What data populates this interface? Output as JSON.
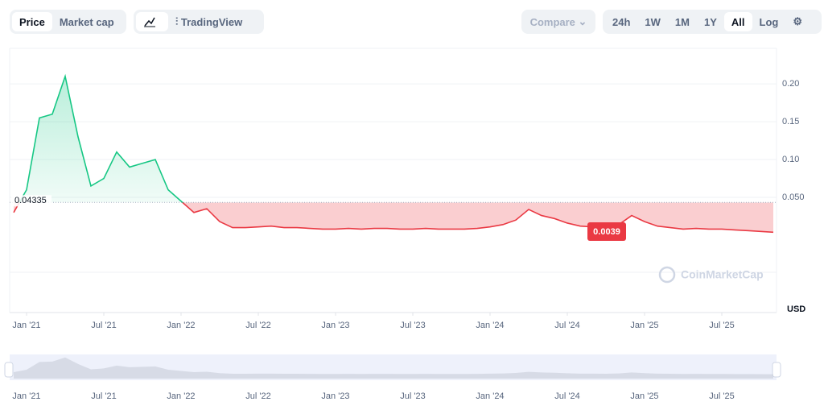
{
  "controls": {
    "view_tabs": [
      "Price",
      "Market cap"
    ],
    "chart_tabs": [
      "TradingView"
    ],
    "compare": "Compare",
    "ranges": [
      "24h",
      "1W",
      "1M",
      "1Y",
      "All"
    ],
    "log": "Log"
  },
  "chart_data": {
    "type": "line",
    "x": [
      "2020-12",
      "2021-01",
      "2021-02",
      "2021-03",
      "2021-04",
      "2021-05",
      "2021-06",
      "2021-07",
      "2021-08",
      "2021-09",
      "2021-10",
      "2021-11",
      "2021-12",
      "2022-01",
      "2022-02",
      "2022-03",
      "2022-04",
      "2022-05",
      "2022-06",
      "2022-07",
      "2022-08",
      "2022-09",
      "2022-10",
      "2022-11",
      "2022-12",
      "2023-01",
      "2023-02",
      "2023-03",
      "2023-04",
      "2023-05",
      "2023-06",
      "2023-07",
      "2023-08",
      "2023-09",
      "2023-10",
      "2023-11",
      "2023-12",
      "2024-01",
      "2024-02",
      "2024-03",
      "2024-04",
      "2024-05",
      "2024-06",
      "2024-07",
      "2024-08",
      "2024-09",
      "2024-10",
      "2024-11",
      "2024-12",
      "2025-01",
      "2025-02",
      "2025-03",
      "2025-04",
      "2025-05",
      "2025-06",
      "2025-07",
      "2025-08",
      "2025-09",
      "2025-10",
      "2025-11"
    ],
    "series": [
      {
        "name": "Price",
        "values": [
          0.03,
          0.06,
          0.155,
          0.16,
          0.21,
          0.13,
          0.065,
          0.075,
          0.11,
          0.09,
          0.095,
          0.1,
          0.06,
          0.045,
          0.03,
          0.035,
          0.018,
          0.01,
          0.01,
          0.011,
          0.012,
          0.01,
          0.01,
          0.009,
          0.008,
          0.008,
          0.009,
          0.008,
          0.009,
          0.009,
          0.008,
          0.008,
          0.009,
          0.008,
          0.008,
          0.008,
          0.009,
          0.011,
          0.014,
          0.02,
          0.034,
          0.026,
          0.022,
          0.016,
          0.012,
          0.011,
          0.01,
          0.014,
          0.026,
          0.018,
          0.012,
          0.01,
          0.008,
          0.009,
          0.008,
          0.008,
          0.007,
          0.006,
          0.005,
          0.0039
        ]
      }
    ],
    "baseline": 0.04335,
    "up_color": "#16c784",
    "down_color": "#ea3943",
    "xlim": [
      "2020-12",
      "2025-11"
    ],
    "xticks": [
      {
        "value": "2021-01",
        "label": "Jan '21"
      },
      {
        "value": "2021-07",
        "label": "Jul '21"
      },
      {
        "value": "2022-01",
        "label": "Jan '22"
      },
      {
        "value": "2022-07",
        "label": "Jul '22"
      },
      {
        "value": "2023-01",
        "label": "Jan '23"
      },
      {
        "value": "2023-07",
        "label": "Jul '23"
      },
      {
        "value": "2024-01",
        "label": "Jan '24"
      },
      {
        "value": "2024-07",
        "label": "Jul '24"
      },
      {
        "value": "2025-01",
        "label": "Jan '25"
      },
      {
        "value": "2025-07",
        "label": "Jul '25"
      }
    ],
    "ylim": [
      -0.049,
      0.247
    ],
    "yticks": [
      {
        "value": 0.05,
        "label": "0.050"
      },
      {
        "value": 0.1,
        "label": "0.10"
      },
      0.15,
      {
        "value": 0.2,
        "label": "0.20"
      }
    ],
    "grid": true,
    "currency": "USD",
    "watermark": "CoinMarketCap"
  }
}
